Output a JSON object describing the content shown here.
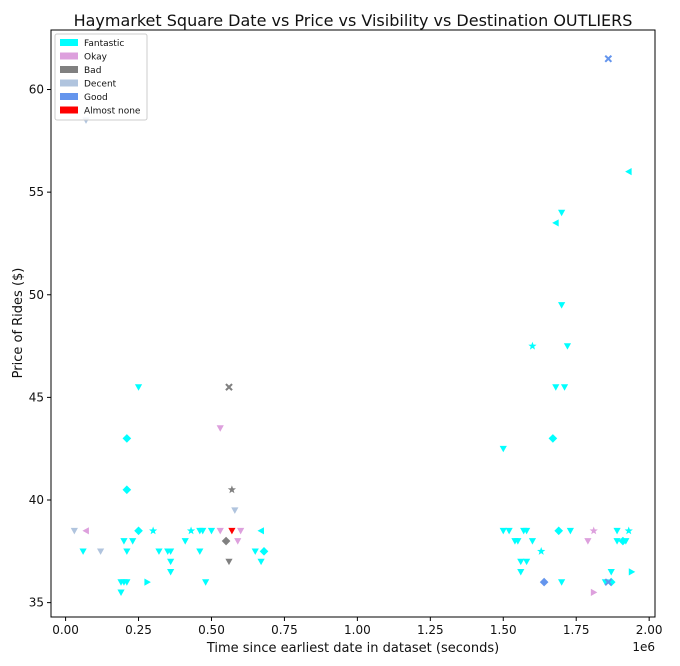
{
  "chart_data": {
    "type": "scatter",
    "title": "Haymarket Square Date vs Price vs Visibility vs Destination OUTLIERS",
    "xlabel": "Time since earliest date in dataset (seconds)",
    "ylabel": "Price of Rides ($)",
    "x_offset_label": "1e6",
    "xlim": [
      -0.05,
      2.02
    ],
    "ylim": [
      34.3,
      62.9
    ],
    "x_ticks": [
      0.0,
      0.25,
      0.5,
      0.75,
      1.0,
      1.25,
      1.5,
      1.75,
      2.0
    ],
    "x_tick_labels": [
      "0.00",
      "0.25",
      "0.50",
      "0.75",
      "1.00",
      "1.25",
      "1.50",
      "1.75",
      "2.00"
    ],
    "y_ticks": [
      35,
      40,
      45,
      50,
      55,
      60
    ],
    "y_tick_labels": [
      "35",
      "40",
      "45",
      "50",
      "55",
      "60"
    ],
    "grid": false,
    "legend_position": "top-left",
    "series": [
      {
        "name": "Fantastic",
        "color": "#00ffff",
        "points": [
          {
            "x": 0.06,
            "y": 37.5,
            "m": "v"
          },
          {
            "x": 0.19,
            "y": 36.0,
            "m": "v"
          },
          {
            "x": 0.19,
            "y": 35.5,
            "m": "v"
          },
          {
            "x": 0.2,
            "y": 36.0,
            "m": "v"
          },
          {
            "x": 0.21,
            "y": 36.0,
            "m": "v"
          },
          {
            "x": 0.2,
            "y": 38.0,
            "m": "v"
          },
          {
            "x": 0.21,
            "y": 37.5,
            "m": "v"
          },
          {
            "x": 0.23,
            "y": 38.0,
            "m": "v"
          },
          {
            "x": 0.21,
            "y": 43.0,
            "m": "D"
          },
          {
            "x": 0.21,
            "y": 40.5,
            "m": "D"
          },
          {
            "x": 0.25,
            "y": 45.5,
            "m": "v"
          },
          {
            "x": 0.25,
            "y": 38.5,
            "m": "D"
          },
          {
            "x": 0.28,
            "y": 36.0,
            "m": ">"
          },
          {
            "x": 0.3,
            "y": 38.5,
            "m": "*"
          },
          {
            "x": 0.32,
            "y": 37.5,
            "m": "v"
          },
          {
            "x": 0.35,
            "y": 37.5,
            "m": "v"
          },
          {
            "x": 0.36,
            "y": 37.5,
            "m": "v"
          },
          {
            "x": 0.36,
            "y": 37.0,
            "m": "v"
          },
          {
            "x": 0.36,
            "y": 36.5,
            "m": "v"
          },
          {
            "x": 0.41,
            "y": 38.0,
            "m": "v"
          },
          {
            "x": 0.43,
            "y": 38.5,
            "m": "*"
          },
          {
            "x": 0.46,
            "y": 38.5,
            "m": "v"
          },
          {
            "x": 0.47,
            "y": 38.5,
            "m": "v"
          },
          {
            "x": 0.46,
            "y": 37.5,
            "m": "v"
          },
          {
            "x": 0.48,
            "y": 36.0,
            "m": "v"
          },
          {
            "x": 0.5,
            "y": 38.5,
            "m": "v"
          },
          {
            "x": 0.65,
            "y": 37.5,
            "m": "v"
          },
          {
            "x": 0.67,
            "y": 37.0,
            "m": "v"
          },
          {
            "x": 0.67,
            "y": 38.5,
            "m": "<"
          },
          {
            "x": 0.68,
            "y": 37.5,
            "m": "D"
          },
          {
            "x": 1.5,
            "y": 42.5,
            "m": "v"
          },
          {
            "x": 1.5,
            "y": 38.5,
            "m": "v"
          },
          {
            "x": 1.52,
            "y": 38.5,
            "m": "v"
          },
          {
            "x": 1.54,
            "y": 38.0,
            "m": "v"
          },
          {
            "x": 1.55,
            "y": 38.0,
            "m": "v"
          },
          {
            "x": 1.56,
            "y": 36.5,
            "m": "v"
          },
          {
            "x": 1.56,
            "y": 37.0,
            "m": "v"
          },
          {
            "x": 1.58,
            "y": 37.0,
            "m": "v"
          },
          {
            "x": 1.57,
            "y": 38.5,
            "m": "v"
          },
          {
            "x": 1.58,
            "y": 38.5,
            "m": "v"
          },
          {
            "x": 1.6,
            "y": 38.0,
            "m": "v"
          },
          {
            "x": 1.6,
            "y": 47.5,
            "m": "*"
          },
          {
            "x": 1.63,
            "y": 37.5,
            "m": "*"
          },
          {
            "x": 1.67,
            "y": 43.0,
            "m": "D"
          },
          {
            "x": 1.68,
            "y": 45.5,
            "m": "v"
          },
          {
            "x": 1.68,
            "y": 53.5,
            "m": "<"
          },
          {
            "x": 1.7,
            "y": 54.0,
            "m": "v"
          },
          {
            "x": 1.7,
            "y": 49.5,
            "m": "v"
          },
          {
            "x": 1.71,
            "y": 45.5,
            "m": "v"
          },
          {
            "x": 1.72,
            "y": 47.5,
            "m": "v"
          },
          {
            "x": 1.69,
            "y": 38.5,
            "m": "D"
          },
          {
            "x": 1.73,
            "y": 38.5,
            "m": "v"
          },
          {
            "x": 1.7,
            "y": 36.0,
            "m": "v"
          },
          {
            "x": 1.85,
            "y": 36.0,
            "m": "v"
          },
          {
            "x": 1.87,
            "y": 36.5,
            "m": "v"
          },
          {
            "x": 1.87,
            "y": 36.0,
            "m": "D"
          },
          {
            "x": 1.89,
            "y": 38.5,
            "m": "v"
          },
          {
            "x": 1.89,
            "y": 38.0,
            "m": "v"
          },
          {
            "x": 1.91,
            "y": 38.0,
            "m": "D"
          },
          {
            "x": 1.92,
            "y": 38.0,
            "m": "v"
          },
          {
            "x": 1.93,
            "y": 38.5,
            "m": "*"
          },
          {
            "x": 1.94,
            "y": 36.5,
            "m": ">"
          },
          {
            "x": 1.93,
            "y": 56.0,
            "m": "<"
          }
        ]
      },
      {
        "name": "Okay",
        "color": "#dda0dd",
        "points": [
          {
            "x": 0.07,
            "y": 38.5,
            "m": "<"
          },
          {
            "x": 0.53,
            "y": 43.5,
            "m": "v"
          },
          {
            "x": 0.53,
            "y": 38.5,
            "m": "v"
          },
          {
            "x": 0.59,
            "y": 38.0,
            "m": "v"
          },
          {
            "x": 0.6,
            "y": 38.5,
            "m": "v"
          },
          {
            "x": 1.79,
            "y": 38.0,
            "m": "v"
          },
          {
            "x": 1.81,
            "y": 38.5,
            "m": "*"
          },
          {
            "x": 1.81,
            "y": 35.5,
            "m": ">"
          }
        ]
      },
      {
        "name": "Bad",
        "color": "#808080",
        "points": [
          {
            "x": 0.56,
            "y": 45.5,
            "m": "X"
          },
          {
            "x": 0.57,
            "y": 40.5,
            "m": "*"
          },
          {
            "x": 0.55,
            "y": 38.0,
            "m": "D"
          },
          {
            "x": 0.56,
            "y": 37.0,
            "m": "v"
          }
        ]
      },
      {
        "name": "Decent",
        "color": "#b0c4de",
        "points": [
          {
            "x": 0.03,
            "y": 38.5,
            "m": "v"
          },
          {
            "x": 0.07,
            "y": 58.5,
            "m": "v"
          },
          {
            "x": 0.12,
            "y": 37.5,
            "m": "v"
          },
          {
            "x": 0.58,
            "y": 39.5,
            "m": "v"
          }
        ]
      },
      {
        "name": "Good",
        "color": "#6495ed",
        "points": [
          {
            "x": 1.86,
            "y": 61.5,
            "m": "X"
          },
          {
            "x": 1.64,
            "y": 36.0,
            "m": "D"
          },
          {
            "x": 1.86,
            "y": 36.0,
            "m": "X"
          }
        ]
      },
      {
        "name": "Almost none",
        "color": "#ff0000",
        "points": [
          {
            "x": 0.57,
            "y": 38.5,
            "m": "v"
          }
        ]
      }
    ]
  }
}
